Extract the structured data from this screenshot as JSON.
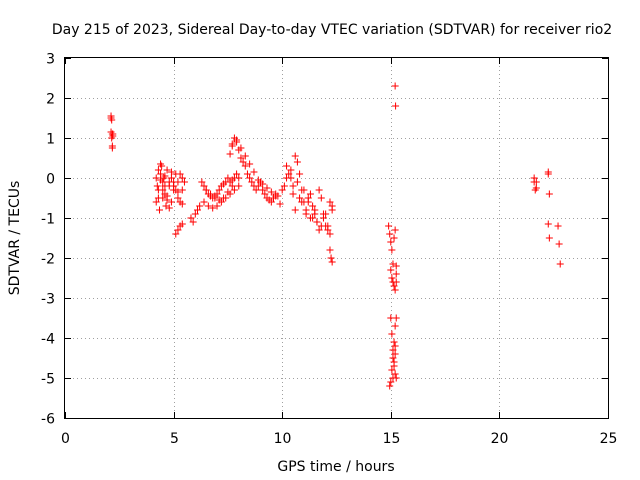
{
  "chart_data": {
    "type": "scatter",
    "title": "Day 215 of 2023, Sidereal Day-to-day VTEC variation (SDTVAR) for receiver rio2",
    "xlabel": "GPS time / hours",
    "ylabel": "SDTVAR / TECUs",
    "xlim": [
      0,
      25
    ],
    "ylim": [
      -6,
      3
    ],
    "xticks": [
      0,
      5,
      10,
      15,
      20,
      25
    ],
    "yticks": [
      -6,
      -5,
      -4,
      -3,
      -2,
      -1,
      0,
      1,
      2,
      3
    ],
    "xtick_labels": [
      "0",
      "5",
      "10",
      "15",
      "20",
      "25"
    ],
    "ytick_labels": [
      "-6",
      "-5",
      "-4",
      "-3",
      "-2",
      "-1",
      "0",
      "1",
      "2",
      "3"
    ],
    "grid": true,
    "marker": "+",
    "color": "#ff0000",
    "series": [
      {
        "name": "SDTVAR",
        "x": [
          2.12,
          2.15,
          2.18,
          2.2,
          2.12,
          2.15,
          2.18,
          2.2,
          2.12,
          2.18,
          4.2,
          4.25,
          4.3,
          4.35,
          4.4,
          4.45,
          4.5,
          4.55,
          4.6,
          4.65,
          4.7,
          4.8,
          4.9,
          5.0,
          5.1,
          5.2,
          5.3,
          5.4,
          5.5,
          4.2,
          4.3,
          4.4,
          4.5,
          4.6,
          4.7,
          4.8,
          4.9,
          5.0,
          5.1,
          5.2,
          5.3,
          5.4,
          4.3,
          4.5,
          4.7,
          4.9,
          5.1,
          5.3,
          4.6,
          4.8,
          5.0,
          5.2,
          5.4,
          4.4,
          5.0,
          5.2,
          5.4,
          5.8,
          5.9,
          6.0,
          6.1,
          6.2,
          6.3,
          6.4,
          6.5,
          6.6,
          6.7,
          6.8,
          6.9,
          7.0,
          7.1,
          7.2,
          7.3,
          7.4,
          7.5,
          7.6,
          7.7,
          7.8,
          7.9,
          8.0,
          6.4,
          6.6,
          6.8,
          7.0,
          7.2,
          7.4,
          7.6,
          7.8,
          8.0,
          6.5,
          6.7,
          6.9,
          7.1,
          7.3,
          7.5,
          7.7,
          7.6,
          7.7,
          7.8,
          7.9,
          8.0,
          8.1,
          8.2,
          8.3,
          8.4,
          8.5,
          8.6,
          8.7,
          8.8,
          8.9,
          9.0,
          9.1,
          9.2,
          9.3,
          9.4,
          9.5,
          9.6,
          9.7,
          9.8,
          9.9,
          7.7,
          7.9,
          8.1,
          8.3,
          8.5,
          8.7,
          8.9,
          9.1,
          9.3,
          9.5,
          9.7,
          10.0,
          10.1,
          10.2,
          10.3,
          10.4,
          10.5,
          10.6,
          10.7,
          10.8,
          10.9,
          11.0,
          11.1,
          11.2,
          11.3,
          11.4,
          11.5,
          11.6,
          11.7,
          11.8,
          11.9,
          12.0,
          12.1,
          12.2,
          12.3,
          10.2,
          10.4,
          10.6,
          10.8,
          11.0,
          11.2,
          11.4,
          11.6,
          11.8,
          12.0,
          12.2,
          10.5,
          10.7,
          10.9,
          11.1,
          11.3,
          11.5,
          11.7,
          11.9,
          12.1,
          12.2,
          12.25,
          12.3,
          12.3,
          14.9,
          14.95,
          15.0,
          15.05,
          15.1,
          15.15,
          15.2,
          15.0,
          15.05,
          15.1,
          15.15,
          15.2,
          15.25,
          15.0,
          15.05,
          15.1,
          15.15,
          15.2,
          15.25,
          15.2,
          15.25,
          15.2,
          15.22,
          14.95,
          15.0,
          15.05,
          15.1,
          15.15,
          15.2,
          15.25,
          15.1,
          15.15,
          15.2,
          15.25,
          21.6,
          21.65,
          21.7,
          21.6,
          21.7,
          22.25,
          22.3,
          22.25,
          22.3,
          22.25,
          22.7,
          22.75,
          22.8
        ],
        "y": [
          1.5,
          1.45,
          1.1,
          1.05,
          1.15,
          1.0,
          0.75,
          1.1,
          1.55,
          0.8,
          0.0,
          -0.2,
          -0.5,
          -0.8,
          0.1,
          0.3,
          -0.3,
          0.0,
          -0.4,
          -0.7,
          0.2,
          -0.1,
          0.0,
          -0.2,
          0.1,
          -0.1,
          0.1,
          0.0,
          -0.1,
          -0.6,
          -0.3,
          0.35,
          -0.5,
          -0.2,
          -0.45,
          -0.75,
          -0.6,
          -0.3,
          -1.4,
          -1.3,
          -1.2,
          -1.15,
          0.2,
          -0.1,
          -0.55,
          0.15,
          -0.3,
          -0.6,
          0.05,
          -0.2,
          -0.1,
          -0.35,
          -0.65,
          -0.05,
          -0.2,
          -0.5,
          -0.3,
          -1.0,
          -1.1,
          -0.9,
          -0.8,
          -0.7,
          -0.1,
          -0.2,
          -0.3,
          -0.4,
          -0.45,
          -0.5,
          -0.45,
          -0.4,
          -0.3,
          -0.2,
          -0.15,
          -0.1,
          0.0,
          -0.1,
          -0.05,
          0.0,
          0.1,
          0.0,
          -0.6,
          -0.7,
          -0.75,
          -0.7,
          -0.6,
          -0.5,
          -0.4,
          -0.3,
          -0.2,
          -0.3,
          -0.4,
          -0.5,
          -0.55,
          -0.5,
          -0.35,
          -0.2,
          0.6,
          0.85,
          1.0,
          0.9,
          0.7,
          0.5,
          0.4,
          0.3,
          0.1,
          0.0,
          -0.1,
          -0.2,
          -0.3,
          -0.2,
          -0.1,
          -0.3,
          -0.4,
          -0.5,
          -0.55,
          -0.6,
          -0.5,
          -0.4,
          -0.45,
          -0.65,
          0.8,
          0.95,
          0.75,
          0.55,
          0.35,
          0.15,
          -0.05,
          -0.15,
          -0.25,
          -0.35,
          -0.45,
          -0.3,
          -0.2,
          0.0,
          0.1,
          0.0,
          -0.2,
          0.55,
          0.4,
          0.1,
          -0.3,
          -0.6,
          -0.8,
          -0.5,
          -0.4,
          -0.7,
          -0.9,
          -1.1,
          -0.3,
          -0.5,
          -0.9,
          -1.2,
          -1.3,
          -0.6,
          -0.8,
          0.3,
          0.2,
          -0.8,
          -0.5,
          -0.3,
          -0.6,
          -1.0,
          -1.1,
          -1.2,
          -0.9,
          -1.4,
          -0.4,
          -0.1,
          -0.6,
          -0.9,
          -1.0,
          -0.8,
          -1.3,
          -1.0,
          -1.2,
          -1.8,
          -2.0,
          -2.1,
          -0.7,
          -1.2,
          -1.4,
          -1.6,
          -1.8,
          -2.15,
          -1.5,
          -1.3,
          -2.3,
          -2.5,
          -2.6,
          -2.7,
          -2.8,
          -2.4,
          -3.5,
          -3.9,
          -4.3,
          -4.6,
          -4.9,
          -5.0,
          -4.2,
          -3.5,
          2.3,
          1.8,
          -5.2,
          -5.1,
          -4.8,
          -4.5,
          -4.1,
          -3.7,
          -2.2,
          -5.0,
          -4.7,
          -4.4,
          -2.6,
          -0.1,
          -0.3,
          -0.1,
          0.0,
          -0.25,
          0.15,
          -0.4,
          -1.15,
          -1.5,
          0.1,
          -1.2,
          -1.65,
          -2.15
        ]
      }
    ]
  }
}
